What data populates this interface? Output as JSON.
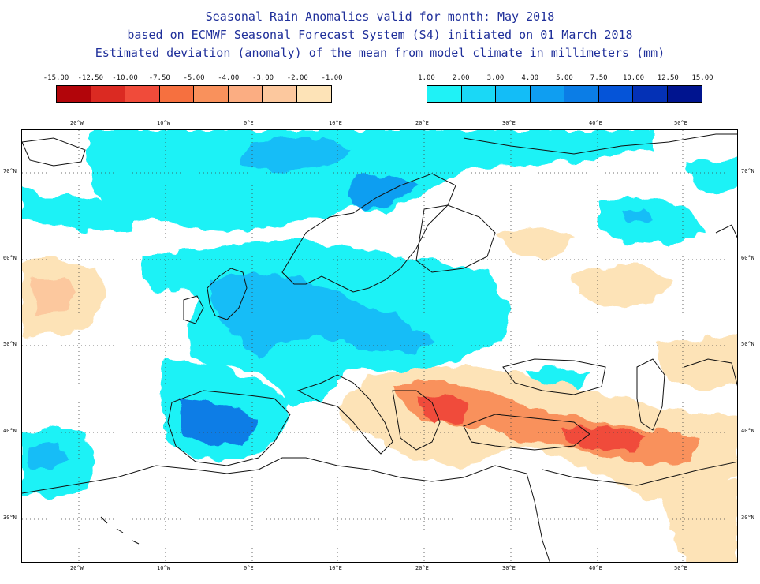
{
  "title": {
    "line1": "Seasonal Rain Anomalies valid for month: May 2018",
    "line2": "based on ECMWF Seasonal Forecast System (S4) initiated on 01 March 2018",
    "line3": "Estimated deviation (anomaly) of the mean from model climate in millimeters (mm)"
  },
  "legend_negative": {
    "labels": [
      "-15.00",
      "-12.50",
      "-10.00",
      "-7.50",
      "-5.00",
      "-4.00",
      "-3.00",
      "-2.00",
      "-1.00"
    ],
    "colors": [
      "#b2050a",
      "#db2a22",
      "#f04b3a",
      "#f6703f",
      "#f9915c",
      "#fbad82",
      "#fcc89e",
      "#fde3b7"
    ]
  },
  "legend_positive": {
    "labels": [
      "1.00",
      "2.00",
      "3.00",
      "4.00",
      "5.00",
      "7.50",
      "10.00",
      "12.50",
      "15.00"
    ],
    "colors": [
      "#1ff2f6",
      "#1ad8f6",
      "#13bdf7",
      "#0f9ef1",
      "#0b7de6",
      "#0554d8",
      "#0431b6",
      "#00148f"
    ]
  },
  "map": {
    "lon_labels": [
      "20°W",
      "10°W",
      "0°E",
      "10°E",
      "20°E",
      "30°E",
      "40°E",
      "50°E"
    ],
    "lat_labels": [
      "70°N",
      "60°N",
      "50°N",
      "40°N",
      "30°N"
    ],
    "colors": {
      "coast": "#111111",
      "grid": "#444444"
    }
  }
}
